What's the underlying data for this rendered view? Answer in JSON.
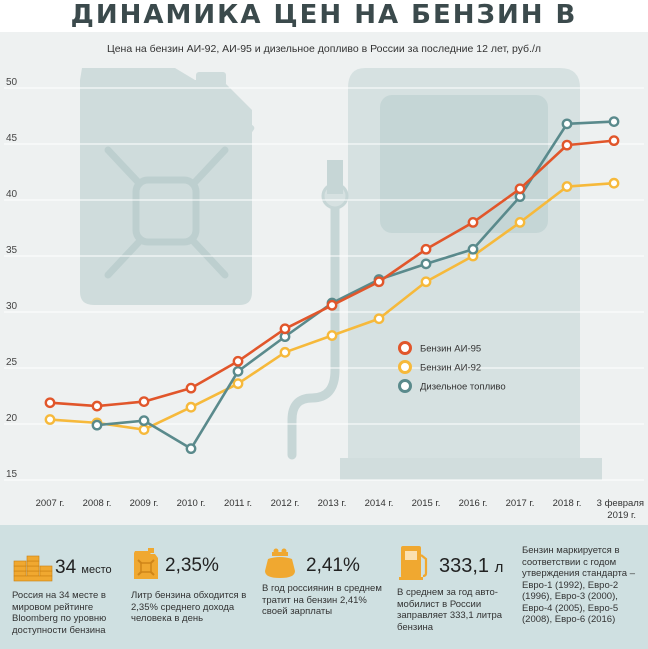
{
  "title": "ДИНАМИКА ЦЕН НА БЕНЗИН В РОССИИ",
  "colors": {
    "ai95": "#e1562b",
    "ai92": "#f6b93b",
    "diesel": "#5a8a8c",
    "background": "#eef1f1",
    "panel": "#cfe0e1",
    "icon_accent": "#f0a830"
  },
  "chart_data": {
    "type": "line",
    "title": "",
    "subtitle": "Цена на бензин АИ-92, АИ-95 и дизельное допливо в России за последние 12 лет, руб./л",
    "xlabel": "",
    "ylabel": "",
    "categories": [
      "2007 г.",
      "2008 г.",
      "2009 г.",
      "2010 г.",
      "2011 г.",
      "2012 г.",
      "2013 г.",
      "2014 г.",
      "2015 г.",
      "2016 г.",
      "2017 г.",
      "2018 г.",
      "3 февраля 2019 г."
    ],
    "yticks": [
      15,
      20,
      25,
      30,
      35,
      40,
      45,
      50
    ],
    "ylim": [
      15,
      50
    ],
    "grid": true,
    "legend_position": "center-right",
    "series": [
      {
        "key": "ai95",
        "name": "Бензин АИ-95",
        "values": [
          21.9,
          21.6,
          22.0,
          23.2,
          25.6,
          28.5,
          30.6,
          32.7,
          35.6,
          38.0,
          41.0,
          44.9,
          45.3
        ]
      },
      {
        "key": "ai92",
        "name": "Бензин АИ-92",
        "values": [
          20.4,
          20.1,
          19.5,
          21.5,
          23.6,
          26.4,
          27.9,
          29.4,
          32.7,
          35.0,
          38.0,
          41.2,
          41.5
        ]
      },
      {
        "key": "diesel",
        "name": "Дизельное топливо",
        "values": [
          null,
          19.9,
          20.3,
          17.8,
          24.7,
          27.8,
          30.8,
          32.9,
          34.3,
          35.6,
          40.3,
          46.8,
          47.0
        ]
      }
    ]
  },
  "stats": [
    {
      "icon": "coin-stack-icon",
      "value": "34",
      "unit": "место",
      "text": "Россия на 34 месте в мировом рейтинге Bloomberg по уровню доступности бензина"
    },
    {
      "icon": "jerrycan-icon",
      "value": "2,35%",
      "text": "Литр бензина обходится в 2,35% среднего дохода человека в день"
    },
    {
      "icon": "purse-icon",
      "value": "2,41%",
      "text": "В год россиянин в среднем тратит на бензин 2,41% своей зарплаты"
    },
    {
      "icon": "fuel-pump-icon",
      "value": "333,1",
      "unit": "л",
      "text": "В среднем за год авто-мобилист в России заправляет 333,1 литра бензина"
    }
  ],
  "standards_note": "Бензин маркируется в соответствии с годом утверждения стандарта – Евро-1 (1992), Евро-2 (1996), Евро-3 (2000), Евро-4 (2005), Евро-5 (2008), Евро-6 (2016)"
}
